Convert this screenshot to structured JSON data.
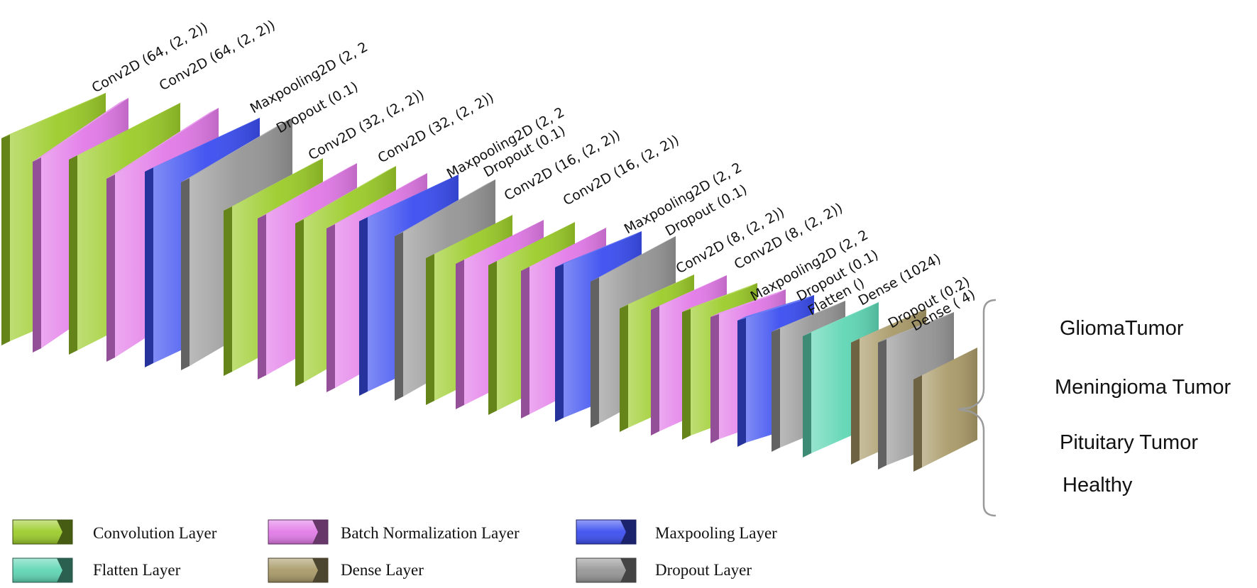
{
  "colors": {
    "conv": "#9ccc2a",
    "bn": "#e27ae8",
    "pool": "#3b4ef0",
    "drop": "#969696",
    "flatten": "#5fd6b4",
    "dense": "#a99a68"
  },
  "layers": [
    {
      "type": "conv",
      "label": "Conv2D (64, (2, 2))"
    },
    {
      "type": "bn",
      "label": ""
    },
    {
      "type": "conv",
      "label": "Conv2D (64, (2, 2))"
    },
    {
      "type": "bn",
      "label": ""
    },
    {
      "type": "pool",
      "label": "Maxpooling2D (2, 2"
    },
    {
      "type": "drop",
      "label": "Dropout (0.1)"
    },
    {
      "type": "conv",
      "label": "Conv2D (32, (2, 2))"
    },
    {
      "type": "bn",
      "label": ""
    },
    {
      "type": "conv",
      "label": "Conv2D (32, (2, 2))"
    },
    {
      "type": "bn",
      "label": ""
    },
    {
      "type": "pool",
      "label": "Maxpooling2D (2, 2"
    },
    {
      "type": "drop",
      "label": "Dropout (0.1)"
    },
    {
      "type": "conv",
      "label": "Conv2D (16, (2, 2))"
    },
    {
      "type": "bn",
      "label": ""
    },
    {
      "type": "conv",
      "label": "Conv2D (16, (2, 2))"
    },
    {
      "type": "bn",
      "label": ""
    },
    {
      "type": "pool",
      "label": "Maxpooling2D (2, 2"
    },
    {
      "type": "drop",
      "label": "Dropout (0.1)"
    },
    {
      "type": "conv",
      "label": "Conv2D (8, (2, 2))"
    },
    {
      "type": "bn",
      "label": ""
    },
    {
      "type": "conv",
      "label": "Conv2D (8, (2, 2))"
    },
    {
      "type": "bn",
      "label": ""
    },
    {
      "type": "pool",
      "label": "Maxpooling2D (2, 2"
    },
    {
      "type": "drop",
      "label": "Dropout (0.1)"
    },
    {
      "type": "flatten",
      "label": "Flatten ()"
    },
    {
      "type": "dense",
      "label": "Dense (1024)"
    },
    {
      "type": "drop",
      "label": "Dropout (0.2)"
    },
    {
      "type": "dense",
      "label": "Dense ( 4)"
    }
  ],
  "outputs": {
    "classes": [
      "GliomaTumor",
      "Meningioma Tumor",
      "Pituitary Tumor",
      "Healthy"
    ]
  },
  "legend": {
    "items": [
      {
        "type": "conv",
        "label": "Convolution Layer"
      },
      {
        "type": "bn",
        "label": "Batch Normalization Layer"
      },
      {
        "type": "pool",
        "label": "Maxpooling Layer"
      },
      {
        "type": "flatten",
        "label": "Flatten Layer"
      },
      {
        "type": "dense",
        "label": "Dense Layer"
      },
      {
        "type": "drop",
        "label": "Dropout Layer"
      }
    ]
  }
}
